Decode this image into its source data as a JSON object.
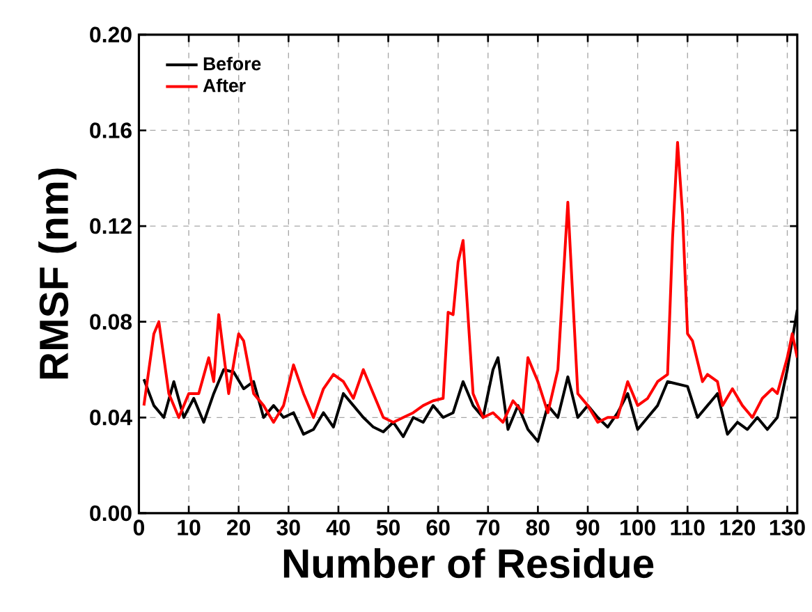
{
  "chart_data": {
    "type": "line",
    "xlabel": "Number of Residue",
    "ylabel": "RMSF (nm)",
    "xlim": [
      0,
      132
    ],
    "xticks": [
      0,
      10,
      20,
      30,
      40,
      50,
      60,
      70,
      80,
      90,
      100,
      110,
      120,
      130
    ],
    "ylim": [
      0,
      0.2
    ],
    "yticks": [
      {
        "value": 0,
        "label": "0.00"
      },
      {
        "value": 0.04,
        "label": "0.04"
      },
      {
        "value": 0.08,
        "label": "0.08"
      },
      {
        "value": 0.12,
        "label": "0.12"
      },
      {
        "value": 0.16,
        "label": "0.16"
      },
      {
        "value": 0.2,
        "label": "0.20"
      }
    ],
    "grid": true,
    "legend": "top left",
    "marker": "none",
    "line_style": "solid",
    "series": [
      {
        "name": "Before",
        "color": "#000000",
        "x": [
          1,
          3,
          5,
          7,
          9,
          11,
          13,
          15,
          17,
          19,
          21,
          23,
          25,
          27,
          29,
          31,
          33,
          35,
          37,
          39,
          41,
          43,
          45,
          47,
          49,
          51,
          53,
          55,
          57,
          59,
          61,
          63,
          65,
          67,
          69,
          71,
          72,
          74,
          76,
          78,
          80,
          82,
          84,
          86,
          88,
          90,
          92,
          94,
          96,
          98,
          100,
          102,
          104,
          106,
          108,
          110,
          112,
          114,
          116,
          118,
          120,
          122,
          124,
          126,
          128,
          130,
          132
        ],
        "values": [
          0.056,
          0.045,
          0.04,
          0.055,
          0.04,
          0.048,
          0.038,
          0.05,
          0.06,
          0.059,
          0.052,
          0.055,
          0.04,
          0.045,
          0.04,
          0.042,
          0.033,
          0.035,
          0.042,
          0.036,
          0.05,
          0.045,
          0.04,
          0.036,
          0.034,
          0.038,
          0.032,
          0.04,
          0.038,
          0.045,
          0.04,
          0.042,
          0.055,
          0.045,
          0.04,
          0.06,
          0.065,
          0.035,
          0.045,
          0.035,
          0.03,
          0.045,
          0.04,
          0.057,
          0.04,
          0.045,
          0.04,
          0.036,
          0.042,
          0.05,
          0.035,
          0.04,
          0.045,
          0.055,
          0.054,
          0.053,
          0.04,
          0.045,
          0.05,
          0.033,
          0.038,
          0.035,
          0.04,
          0.035,
          0.04,
          0.06,
          0.085
        ]
      },
      {
        "name": "After",
        "color": "#ff0000",
        "x": [
          1,
          3,
          4,
          6,
          8,
          10,
          12,
          14,
          15,
          16,
          18,
          20,
          21,
          23,
          25,
          27,
          29,
          31,
          33,
          35,
          37,
          39,
          41,
          43,
          45,
          47,
          49,
          51,
          53,
          55,
          57,
          59,
          61,
          62,
          63,
          64,
          65,
          67,
          69,
          71,
          73,
          75,
          77,
          78,
          80,
          82,
          84,
          85,
          86,
          87,
          88,
          90,
          92,
          94,
          96,
          98,
          100,
          102,
          104,
          106,
          107,
          108,
          109,
          110,
          111,
          113,
          114,
          116,
          117,
          119,
          121,
          123,
          125,
          127,
          128,
          130,
          131,
          132
        ],
        "values": [
          0.045,
          0.075,
          0.08,
          0.05,
          0.04,
          0.05,
          0.05,
          0.065,
          0.055,
          0.083,
          0.05,
          0.075,
          0.072,
          0.05,
          0.045,
          0.038,
          0.045,
          0.062,
          0.05,
          0.04,
          0.052,
          0.058,
          0.055,
          0.048,
          0.06,
          0.05,
          0.04,
          0.038,
          0.04,
          0.042,
          0.045,
          0.047,
          0.048,
          0.084,
          0.083,
          0.105,
          0.114,
          0.05,
          0.04,
          0.042,
          0.038,
          0.047,
          0.042,
          0.065,
          0.055,
          0.042,
          0.06,
          0.095,
          0.13,
          0.09,
          0.05,
          0.045,
          0.038,
          0.04,
          0.04,
          0.055,
          0.045,
          0.048,
          0.055,
          0.058,
          0.115,
          0.155,
          0.125,
          0.075,
          0.072,
          0.055,
          0.058,
          0.055,
          0.045,
          0.052,
          0.045,
          0.04,
          0.048,
          0.052,
          0.05,
          0.065,
          0.075,
          0.065
        ]
      }
    ]
  }
}
